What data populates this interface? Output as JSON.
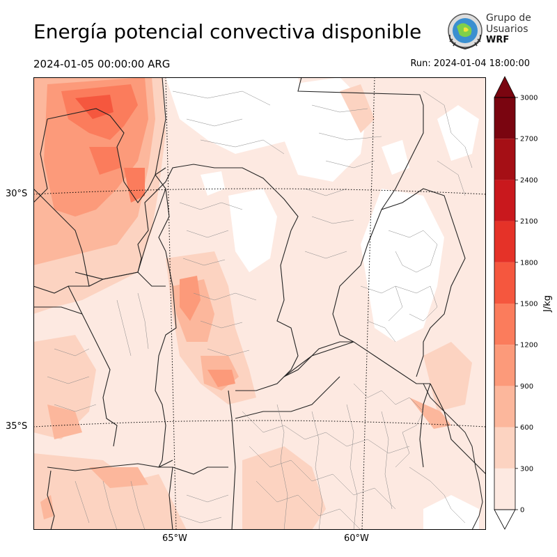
{
  "title": "Energía potencial convectiva disponible",
  "valid_time": "2024-01-05 00:00:00 ARG",
  "run_time": "Run: 2024-01-04 18:00:00",
  "logo": {
    "line1": "Grupo de",
    "line2": "Usuarios",
    "line3": "WRF"
  },
  "map": {
    "lat_labels": [
      "30°S",
      "35°S"
    ],
    "lon_labels": [
      "65°W",
      "60°W"
    ]
  },
  "colorbar": {
    "label": "J/kg",
    "ticks": [
      "0",
      "300",
      "600",
      "900",
      "1200",
      "1500",
      "1800",
      "2100",
      "2400",
      "2700",
      "3000"
    ],
    "levels": [
      0,
      300,
      600,
      900,
      1200,
      1500,
      1800,
      2100,
      2400,
      2700,
      3000
    ],
    "colors": [
      "#fde9e1",
      "#fcd3c1",
      "#fcb79c",
      "#fc9a7a",
      "#fb7c5c",
      "#f5573e",
      "#e53228",
      "#c9181d",
      "#a50f15",
      "#7a0510"
    ],
    "extend": "both"
  }
}
